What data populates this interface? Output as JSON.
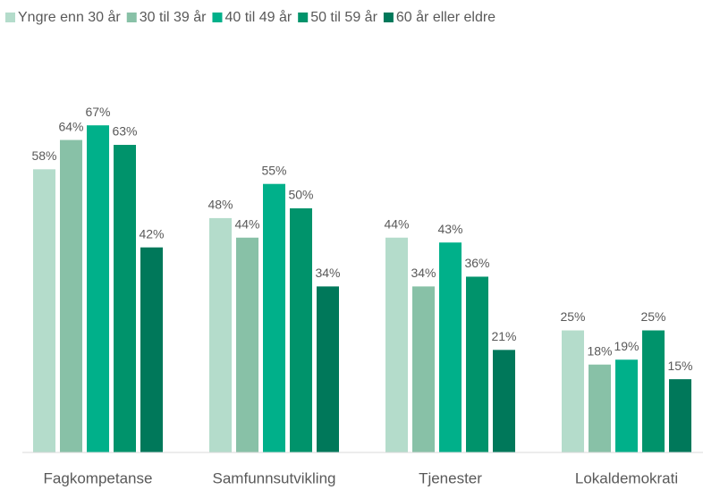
{
  "chart_data": {
    "type": "bar",
    "categories": [
      "Fagkompetanse",
      "Samfunnsutvikling",
      "Tjenester",
      "Lokaldemokrati"
    ],
    "series": [
      {
        "name": "Yngre enn 30 år",
        "color": "#b4dccb",
        "values": [
          58,
          48,
          44,
          25
        ],
        "value_labels": [
          "58%",
          "48%",
          "44%",
          "25%"
        ]
      },
      {
        "name": "30 til 39 år",
        "color": "#88c1a7",
        "values": [
          64,
          44,
          34,
          18
        ],
        "value_labels": [
          "64%",
          "44%",
          "34%",
          "18%"
        ]
      },
      {
        "name": "40 til 49 år",
        "color": "#00b08a",
        "values": [
          67,
          55,
          43,
          19
        ],
        "value_labels": [
          "67%",
          "55%",
          "43%",
          "19%"
        ]
      },
      {
        "name": "50 til 59 år",
        "color": "#00936b",
        "values": [
          63,
          50,
          36,
          25
        ],
        "value_labels": [
          "63%",
          "50%",
          "36%",
          "25%"
        ]
      },
      {
        "name": "60 år eller eldre",
        "color": "#00785a",
        "values": [
          42,
          34,
          21,
          15
        ],
        "value_labels": [
          "42%",
          "34%",
          "21%",
          "15%"
        ]
      }
    ],
    "legend": "top"
  }
}
